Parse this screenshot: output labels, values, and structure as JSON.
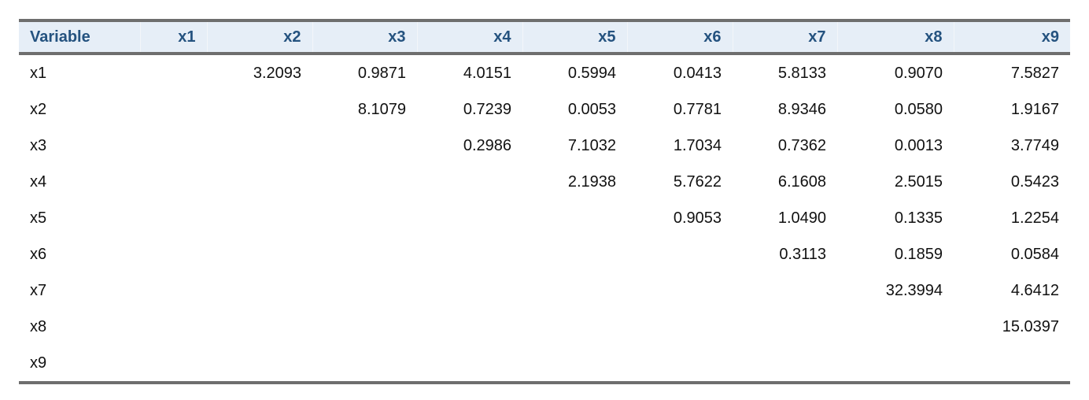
{
  "table": {
    "columns": [
      "Variable",
      "x1",
      "x2",
      "x3",
      "x4",
      "x5",
      "x6",
      "x7",
      "x8",
      "x9"
    ],
    "rows": [
      {
        "label": "x1",
        "values": [
          "3.2093",
          "0.9871",
          "4.0151",
          "0.5994",
          "0.0413",
          "5.8133",
          "0.9070",
          "7.5827"
        ]
      },
      {
        "label": "x2",
        "values": [
          "8.1079",
          "0.7239",
          "0.0053",
          "0.7781",
          "8.9346",
          "0.0580",
          "1.9167"
        ]
      },
      {
        "label": "x3",
        "values": [
          "0.2986",
          "7.1032",
          "1.7034",
          "0.7362",
          "0.0013",
          "3.7749"
        ]
      },
      {
        "label": "x4",
        "values": [
          "2.1938",
          "5.7622",
          "6.1608",
          "2.5015",
          "0.5423"
        ]
      },
      {
        "label": "x5",
        "values": [
          "0.9053",
          "1.0490",
          "0.1335",
          "1.2254"
        ]
      },
      {
        "label": "x6",
        "values": [
          "0.3113",
          "0.1859",
          "0.0584"
        ]
      },
      {
        "label": "x7",
        "values": [
          "32.3994",
          "4.6412"
        ]
      },
      {
        "label": "x8",
        "values": [
          "15.0397"
        ]
      },
      {
        "label": "x9",
        "values": []
      }
    ]
  }
}
